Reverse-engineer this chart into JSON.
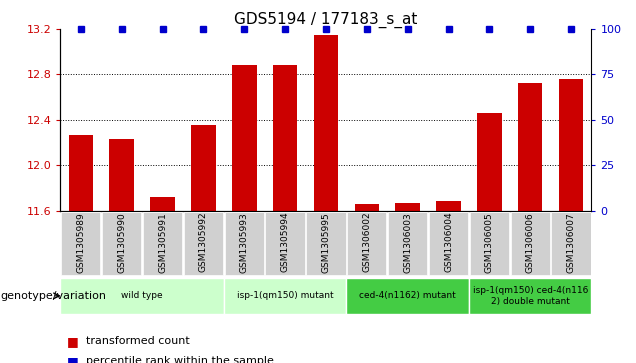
{
  "title": "GDS5194 / 177183_s_at",
  "samples": [
    "GSM1305989",
    "GSM1305990",
    "GSM1305991",
    "GSM1305992",
    "GSM1305993",
    "GSM1305994",
    "GSM1305995",
    "GSM1306002",
    "GSM1306003",
    "GSM1306004",
    "GSM1306005",
    "GSM1306006",
    "GSM1306007"
  ],
  "red_values": [
    12.27,
    12.23,
    11.72,
    12.35,
    12.88,
    12.88,
    13.15,
    11.66,
    11.67,
    11.68,
    12.46,
    12.72,
    12.76
  ],
  "blue_positions": [
    0,
    1,
    2,
    3,
    4,
    5,
    6,
    7,
    8,
    9,
    10,
    11,
    12
  ],
  "ylim_left": [
    11.6,
    13.2
  ],
  "ylim_right": [
    0,
    100
  ],
  "yticks_left": [
    11.6,
    12.0,
    12.4,
    12.8,
    13.2
  ],
  "yticks_right": [
    0,
    25,
    50,
    75,
    100
  ],
  "bar_color": "#cc0000",
  "dot_color": "#0000cc",
  "bar_bottom": 11.6,
  "groups": [
    {
      "label": "wild type",
      "start": 0,
      "end": 3,
      "color": "#ccffcc"
    },
    {
      "label": "isp-1(qm150) mutant",
      "start": 4,
      "end": 6,
      "color": "#ccffcc"
    },
    {
      "label": "ced-4(n1162) mutant",
      "start": 7,
      "end": 9,
      "color": "#44cc44"
    },
    {
      "label": "isp-1(qm150) ced-4(n116\n2) double mutant",
      "start": 10,
      "end": 12,
      "color": "#44cc44"
    }
  ],
  "genotype_label": "genotype/variation",
  "legend_red": "transformed count",
  "legend_blue": "percentile rank within the sample",
  "tick_label_color_left": "#cc0000",
  "tick_label_color_right": "#0000cc",
  "bar_width": 0.6,
  "xtick_bg": "#d0d0d0",
  "plot_bg": "#ffffff",
  "grid_lines": [
    12.0,
    12.4,
    12.8
  ]
}
